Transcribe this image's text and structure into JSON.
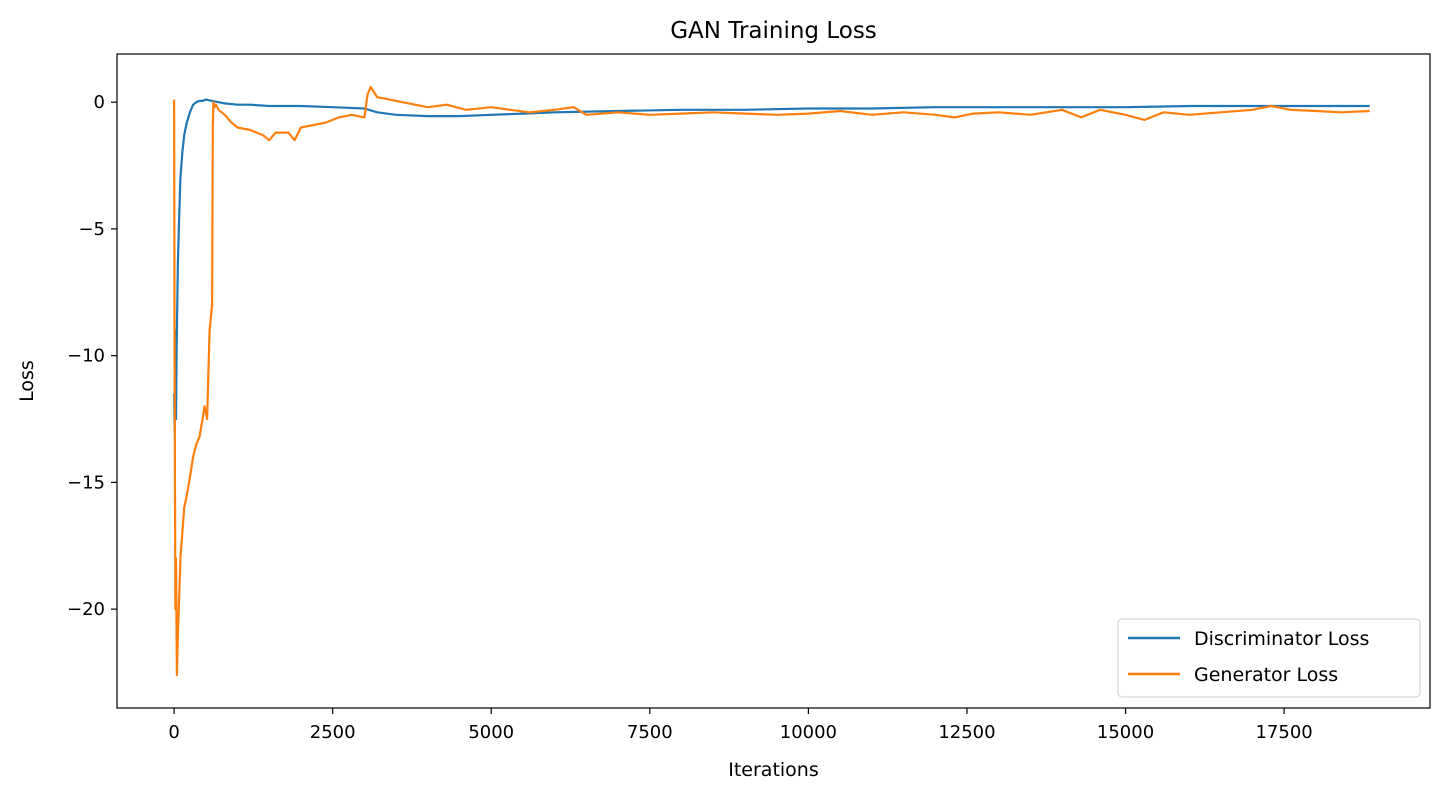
{
  "chart_data": {
    "type": "line",
    "title": "GAN Training Loss",
    "xlabel": "Iterations",
    "ylabel": "Loss",
    "xlim": [
      -900,
      19800
    ],
    "ylim": [
      -23.9,
      1.9
    ],
    "xticks": [
      0,
      2500,
      5000,
      7500,
      10000,
      12500,
      15000,
      17500
    ],
    "xtick_labels": [
      "0",
      "2500",
      "5000",
      "7500",
      "10000",
      "12500",
      "15000",
      "17500"
    ],
    "yticks": [
      0,
      -5,
      -10,
      -15,
      -20
    ],
    "ytick_labels": [
      "0",
      "−5",
      "−10",
      "−15",
      "−20"
    ],
    "grid": false,
    "legend_position": "lower-right",
    "series": [
      {
        "name": "Discriminator Loss",
        "color": "#1f77b4",
        "x": [
          0,
          10,
          20,
          30,
          40,
          60,
          80,
          100,
          130,
          160,
          200,
          250,
          300,
          350,
          400,
          450,
          500,
          600,
          700,
          800,
          1000,
          1200,
          1500,
          2000,
          2500,
          3000,
          3200,
          3500,
          4000,
          4500,
          5000,
          5500,
          6000,
          7000,
          8000,
          9000,
          10000,
          11000,
          12000,
          13000,
          14000,
          15000,
          16000,
          17000,
          18000,
          18850
        ],
        "y": [
          -11.5,
          -13.0,
          -9.0,
          -12.5,
          -9.8,
          -6.3,
          -4.5,
          -3.0,
          -2.0,
          -1.3,
          -0.8,
          -0.4,
          -0.1,
          0.0,
          0.05,
          0.05,
          0.1,
          0.05,
          0.0,
          -0.05,
          -0.1,
          -0.1,
          -0.15,
          -0.15,
          -0.2,
          -0.25,
          -0.4,
          -0.5,
          -0.55,
          -0.55,
          -0.5,
          -0.45,
          -0.4,
          -0.35,
          -0.3,
          -0.3,
          -0.25,
          -0.25,
          -0.2,
          -0.2,
          -0.2,
          -0.2,
          -0.15,
          -0.15,
          -0.15,
          -0.15
        ]
      },
      {
        "name": "Generator Loss",
        "color": "#ff7f0e",
        "x": [
          0,
          10,
          20,
          30,
          45,
          60,
          80,
          100,
          130,
          160,
          200,
          250,
          300,
          350,
          400,
          450,
          480,
          520,
          560,
          600,
          610,
          620,
          640,
          660,
          700,
          800,
          900,
          1000,
          1200,
          1400,
          1500,
          1600,
          1800,
          1900,
          2000,
          2200,
          2400,
          2600,
          2800,
          3000,
          3050,
          3100,
          3200,
          3400,
          3600,
          3800,
          4000,
          4300,
          4600,
          5000,
          5300,
          5600,
          6000,
          6300,
          6500,
          7000,
          7500,
          8000,
          8500,
          9000,
          9500,
          10000,
          10500,
          11000,
          11500,
          12000,
          12300,
          12600,
          13000,
          13500,
          14000,
          14300,
          14600,
          15000,
          15300,
          15600,
          16000,
          16500,
          17000,
          17300,
          17600,
          18000,
          18400,
          18850
        ],
        "y": [
          0.1,
          -12.0,
          -20.0,
          -18.0,
          -22.6,
          -21.0,
          -19.5,
          -18.0,
          -17.0,
          -16.0,
          -15.5,
          -14.8,
          -14.0,
          -13.5,
          -13.2,
          -12.5,
          -12.0,
          -12.5,
          -9.0,
          -8.0,
          -1.0,
          0.0,
          -0.2,
          -0.1,
          -0.3,
          -0.5,
          -0.8,
          -1.0,
          -1.1,
          -1.3,
          -1.5,
          -1.2,
          -1.2,
          -1.5,
          -1.0,
          -0.9,
          -0.8,
          -0.6,
          -0.5,
          -0.6,
          0.3,
          0.6,
          0.2,
          0.1,
          0.0,
          -0.1,
          -0.2,
          -0.1,
          -0.3,
          -0.2,
          -0.3,
          -0.4,
          -0.3,
          -0.2,
          -0.5,
          -0.4,
          -0.5,
          -0.45,
          -0.4,
          -0.45,
          -0.5,
          -0.45,
          -0.35,
          -0.5,
          -0.4,
          -0.5,
          -0.6,
          -0.45,
          -0.4,
          -0.5,
          -0.3,
          -0.6,
          -0.3,
          -0.5,
          -0.7,
          -0.4,
          -0.5,
          -0.4,
          -0.3,
          -0.15,
          -0.3,
          -0.35,
          -0.4,
          -0.35
        ]
      }
    ]
  }
}
